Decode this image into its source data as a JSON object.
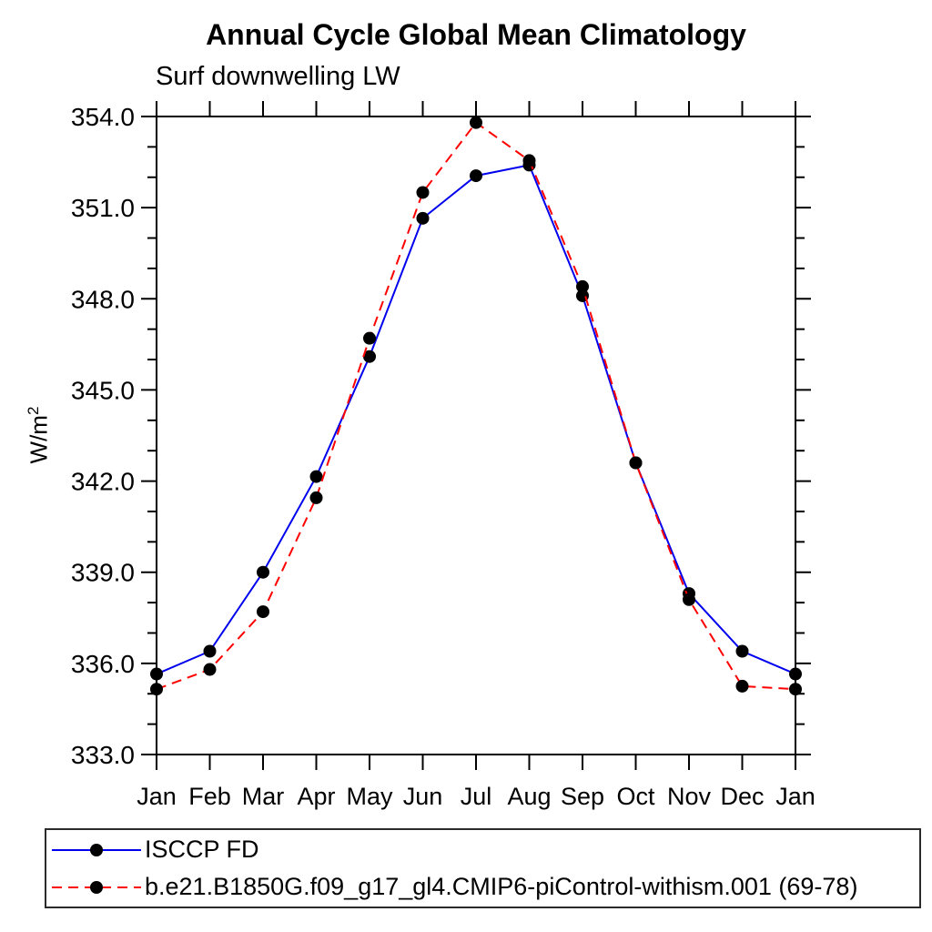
{
  "title": "Annual Cycle Global Mean Climatology",
  "subtitle": "Surf downwelling LW",
  "ylabel": {
    "text": "W/m",
    "sup": "2"
  },
  "chart_data": {
    "type": "line",
    "categories": [
      "Jan",
      "Feb",
      "Mar",
      "Apr",
      "May",
      "Jun",
      "Jul",
      "Aug",
      "Sep",
      "Oct",
      "Nov",
      "Dec",
      "Jan"
    ],
    "series": [
      {
        "name": "ISCCP FD",
        "color": "#0000ee",
        "style": "solid",
        "marker": "filled-circle",
        "values": [
          335.65,
          336.4,
          339.0,
          342.15,
          346.1,
          350.65,
          352.05,
          352.4,
          348.1,
          342.6,
          338.3,
          336.4,
          335.65
        ]
      },
      {
        "name": "b.e21.B1850G.f09_g17_gl4.CMIP6-piControl-withism.001 (69-78)",
        "color": "#ff0000",
        "style": "dashed",
        "marker": "filled-circle",
        "values": [
          335.15,
          335.8,
          337.7,
          341.45,
          346.7,
          351.5,
          353.8,
          352.55,
          348.4,
          342.6,
          338.1,
          335.25,
          335.15
        ]
      }
    ],
    "ylabel": "W/m2",
    "ylim": [
      333.0,
      354.0
    ],
    "y_major_step": 3.0,
    "y_minor_step": 1.0,
    "y_tick_labels": [
      "333.0",
      "336.0",
      "339.0",
      "342.0",
      "345.0",
      "348.0",
      "351.0",
      "354.0"
    ],
    "grid": "off",
    "legend_position": "bottom",
    "marker_color": "#000000",
    "axis_color": "#000000"
  }
}
